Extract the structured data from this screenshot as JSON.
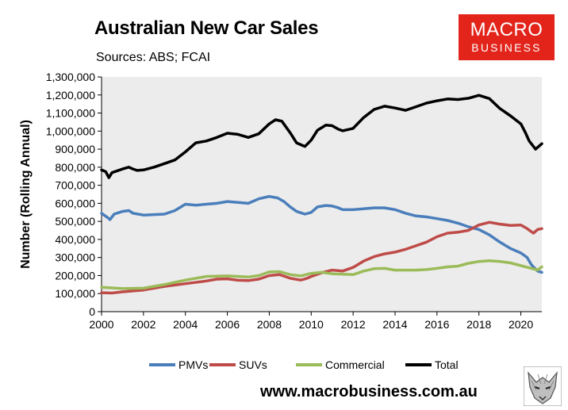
{
  "chart_data": {
    "type": "line",
    "title": "Australian New Car Sales",
    "subtitle": "Sources: ABS; FCAI",
    "xlabel": "",
    "ylabel": "Number (Rolling Annual)",
    "xlim": [
      2000,
      2021
    ],
    "ylim": [
      0,
      1300000
    ],
    "x_ticks": [
      2000,
      2002,
      2004,
      2006,
      2008,
      2010,
      2012,
      2014,
      2016,
      2018,
      2020
    ],
    "x_tick_labels": [
      "2000",
      "2002",
      "2004",
      "2006",
      "2008",
      "2010",
      "2012",
      "2014",
      "2016",
      "2018",
      "2020"
    ],
    "y_ticks": [
      0,
      100000,
      200000,
      300000,
      400000,
      500000,
      600000,
      700000,
      800000,
      900000,
      1000000,
      1100000,
      1200000,
      1300000
    ],
    "y_tick_labels": [
      "0",
      "100,000",
      "200,000",
      "300,000",
      "400,000",
      "500,000",
      "600,000",
      "700,000",
      "800,000",
      "900,000",
      "1,000,000",
      "1,100,000",
      "1,200,000",
      "1,300,000"
    ],
    "grid": false,
    "legend_position": "bottom",
    "series": [
      {
        "name": "PMVs",
        "color": "#4a7ebb",
        "points": [
          [
            2000,
            545000
          ],
          [
            2000.3,
            520000
          ],
          [
            2000.4,
            510000
          ],
          [
            2000.6,
            540000
          ],
          [
            2001,
            555000
          ],
          [
            2001.3,
            560000
          ],
          [
            2001.5,
            545000
          ],
          [
            2002,
            535000
          ],
          [
            2003,
            540000
          ],
          [
            2003.5,
            560000
          ],
          [
            2004,
            595000
          ],
          [
            2004.5,
            590000
          ],
          [
            2005,
            595000
          ],
          [
            2005.5,
            600000
          ],
          [
            2006,
            610000
          ],
          [
            2006.5,
            605000
          ],
          [
            2007,
            600000
          ],
          [
            2007.5,
            625000
          ],
          [
            2008,
            638000
          ],
          [
            2008.4,
            630000
          ],
          [
            2008.7,
            610000
          ],
          [
            2009,
            580000
          ],
          [
            2009.3,
            555000
          ],
          [
            2009.7,
            540000
          ],
          [
            2010,
            550000
          ],
          [
            2010.3,
            580000
          ],
          [
            2010.7,
            588000
          ],
          [
            2011,
            585000
          ],
          [
            2011.3,
            575000
          ],
          [
            2011.5,
            565000
          ],
          [
            2012,
            565000
          ],
          [
            2012.5,
            570000
          ],
          [
            2013,
            575000
          ],
          [
            2013.5,
            575000
          ],
          [
            2014,
            565000
          ],
          [
            2014.5,
            545000
          ],
          [
            2015,
            530000
          ],
          [
            2015.5,
            525000
          ],
          [
            2016,
            515000
          ],
          [
            2016.5,
            505000
          ],
          [
            2017,
            490000
          ],
          [
            2017.5,
            470000
          ],
          [
            2018,
            455000
          ],
          [
            2018.5,
            425000
          ],
          [
            2019,
            385000
          ],
          [
            2019.5,
            350000
          ],
          [
            2020,
            325000
          ],
          [
            2020.3,
            300000
          ],
          [
            2020.5,
            260000
          ],
          [
            2020.8,
            225000
          ],
          [
            2021,
            218000
          ]
        ]
      },
      {
        "name": "SUVs",
        "color": "#be4b48",
        "points": [
          [
            2000,
            105000
          ],
          [
            2000.5,
            103000
          ],
          [
            2001,
            110000
          ],
          [
            2002,
            120000
          ],
          [
            2003,
            140000
          ],
          [
            2004,
            155000
          ],
          [
            2005,
            170000
          ],
          [
            2005.5,
            180000
          ],
          [
            2006,
            182000
          ],
          [
            2006.5,
            174000
          ],
          [
            2007,
            172000
          ],
          [
            2007.5,
            180000
          ],
          [
            2008,
            200000
          ],
          [
            2008.5,
            205000
          ],
          [
            2009,
            185000
          ],
          [
            2009.5,
            175000
          ],
          [
            2009.8,
            185000
          ],
          [
            2010,
            195000
          ],
          [
            2010.5,
            215000
          ],
          [
            2011,
            230000
          ],
          [
            2011.5,
            225000
          ],
          [
            2012,
            245000
          ],
          [
            2012.5,
            280000
          ],
          [
            2013,
            305000
          ],
          [
            2013.5,
            320000
          ],
          [
            2014,
            330000
          ],
          [
            2014.5,
            345000
          ],
          [
            2015,
            365000
          ],
          [
            2015.5,
            385000
          ],
          [
            2016,
            415000
          ],
          [
            2016.5,
            435000
          ],
          [
            2017,
            440000
          ],
          [
            2017.5,
            450000
          ],
          [
            2018,
            480000
          ],
          [
            2018.5,
            495000
          ],
          [
            2019,
            485000
          ],
          [
            2019.5,
            478000
          ],
          [
            2020,
            480000
          ],
          [
            2020.3,
            460000
          ],
          [
            2020.6,
            435000
          ],
          [
            2020.8,
            455000
          ],
          [
            2021,
            460000
          ]
        ]
      },
      {
        "name": "Commercial",
        "color": "#9bbb59",
        "points": [
          [
            2000,
            135000
          ],
          [
            2001,
            128000
          ],
          [
            2002,
            130000
          ],
          [
            2003,
            150000
          ],
          [
            2004,
            175000
          ],
          [
            2005,
            195000
          ],
          [
            2006,
            198000
          ],
          [
            2007,
            192000
          ],
          [
            2007.5,
            200000
          ],
          [
            2008,
            220000
          ],
          [
            2008.5,
            222000
          ],
          [
            2009,
            205000
          ],
          [
            2009.5,
            198000
          ],
          [
            2010,
            212000
          ],
          [
            2010.5,
            218000
          ],
          [
            2011,
            210000
          ],
          [
            2012,
            205000
          ],
          [
            2012.5,
            225000
          ],
          [
            2013,
            238000
          ],
          [
            2013.5,
            240000
          ],
          [
            2014,
            230000
          ],
          [
            2015,
            230000
          ],
          [
            2015.5,
            233000
          ],
          [
            2016,
            240000
          ],
          [
            2016.5,
            248000
          ],
          [
            2017,
            252000
          ],
          [
            2017.5,
            268000
          ],
          [
            2018,
            278000
          ],
          [
            2018.5,
            282000
          ],
          [
            2019,
            278000
          ],
          [
            2019.5,
            270000
          ],
          [
            2020,
            255000
          ],
          [
            2020.5,
            240000
          ],
          [
            2020.8,
            230000
          ],
          [
            2021,
            248000
          ]
        ]
      },
      {
        "name": "Total",
        "color": "#000000",
        "points": [
          [
            2000,
            785000
          ],
          [
            2000.2,
            775000
          ],
          [
            2000.35,
            742000
          ],
          [
            2000.5,
            770000
          ],
          [
            2001,
            790000
          ],
          [
            2001.3,
            800000
          ],
          [
            2001.5,
            790000
          ],
          [
            2001.7,
            782000
          ],
          [
            2002,
            785000
          ],
          [
            2002.5,
            800000
          ],
          [
            2003,
            820000
          ],
          [
            2003.5,
            840000
          ],
          [
            2004,
            885000
          ],
          [
            2004.5,
            935000
          ],
          [
            2005,
            945000
          ],
          [
            2005.5,
            965000
          ],
          [
            2006,
            988000
          ],
          [
            2006.5,
            982000
          ],
          [
            2007,
            965000
          ],
          [
            2007.5,
            985000
          ],
          [
            2008,
            1040000
          ],
          [
            2008.3,
            1063000
          ],
          [
            2008.6,
            1055000
          ],
          [
            2009,
            990000
          ],
          [
            2009.3,
            935000
          ],
          [
            2009.7,
            915000
          ],
          [
            2010,
            950000
          ],
          [
            2010.3,
            1005000
          ],
          [
            2010.7,
            1033000
          ],
          [
            2011,
            1030000
          ],
          [
            2011.3,
            1010000
          ],
          [
            2011.5,
            1002000
          ],
          [
            2012,
            1015000
          ],
          [
            2012.5,
            1075000
          ],
          [
            2013,
            1120000
          ],
          [
            2013.5,
            1138000
          ],
          [
            2014,
            1128000
          ],
          [
            2014.5,
            1115000
          ],
          [
            2015,
            1135000
          ],
          [
            2015.5,
            1155000
          ],
          [
            2016,
            1168000
          ],
          [
            2016.5,
            1178000
          ],
          [
            2017,
            1175000
          ],
          [
            2017.5,
            1182000
          ],
          [
            2018,
            1198000
          ],
          [
            2018.5,
            1180000
          ],
          [
            2019,
            1125000
          ],
          [
            2019.5,
            1085000
          ],
          [
            2020,
            1040000
          ],
          [
            2020.2,
            995000
          ],
          [
            2020.4,
            945000
          ],
          [
            2020.7,
            900000
          ],
          [
            2021,
            930000
          ]
        ]
      }
    ]
  },
  "logo": {
    "line1": "MACRO",
    "line2": "BUSINESS",
    "bg_color": "#e2241b"
  },
  "footer": {
    "url": "www.macrobusiness.com.au"
  }
}
